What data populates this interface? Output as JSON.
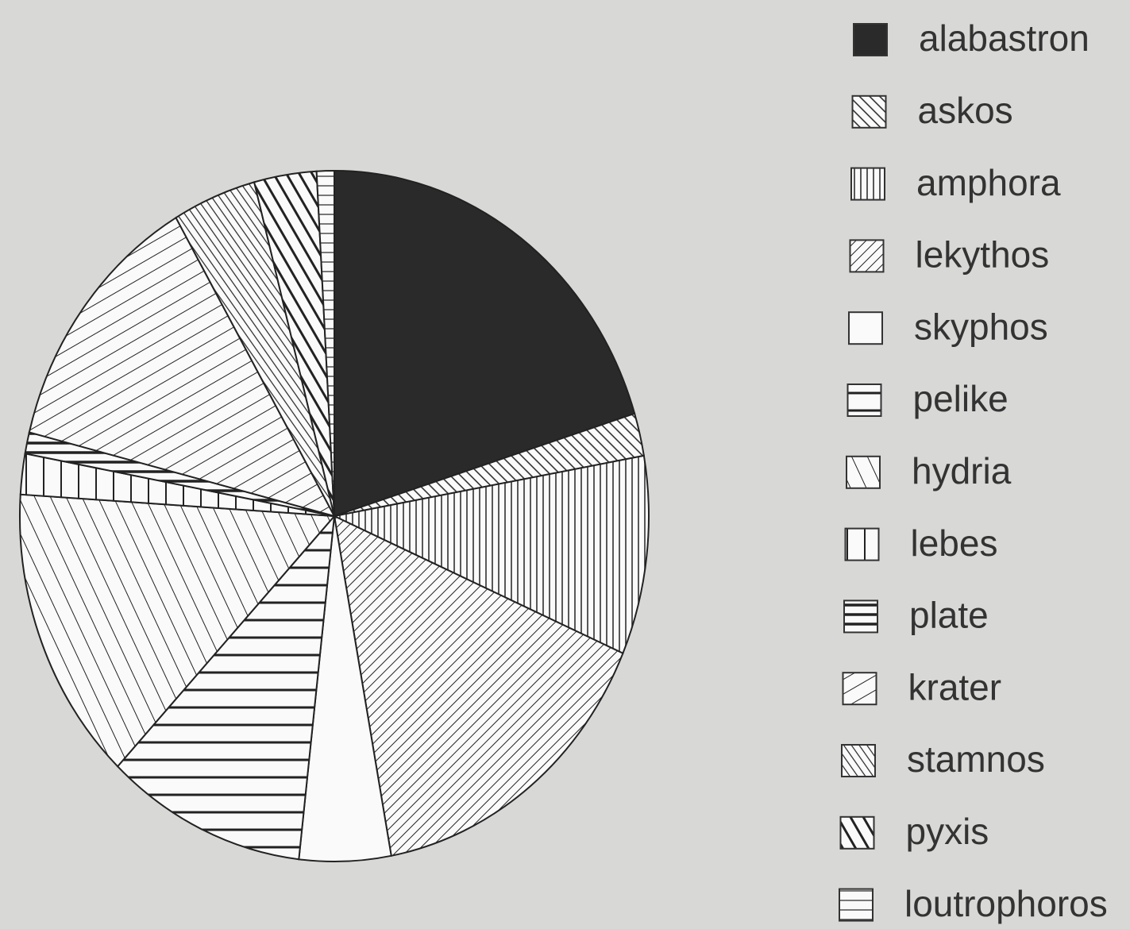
{
  "chart_data": {
    "type": "pie",
    "categories": [
      "alabastron",
      "askos",
      "amphora",
      "lekythos",
      "skyphos",
      "pelike",
      "hydria",
      "lebes",
      "plate",
      "krater",
      "stamnos",
      "pyxis",
      "loutrophoros"
    ],
    "values": [
      20.2,
      2.0,
      9.3,
      15.6,
      4.7,
      10.3,
      13.9,
      1.9,
      1.0,
      12.7,
      4.3,
      3.2,
      0.9
    ],
    "legend": "right"
  }
}
